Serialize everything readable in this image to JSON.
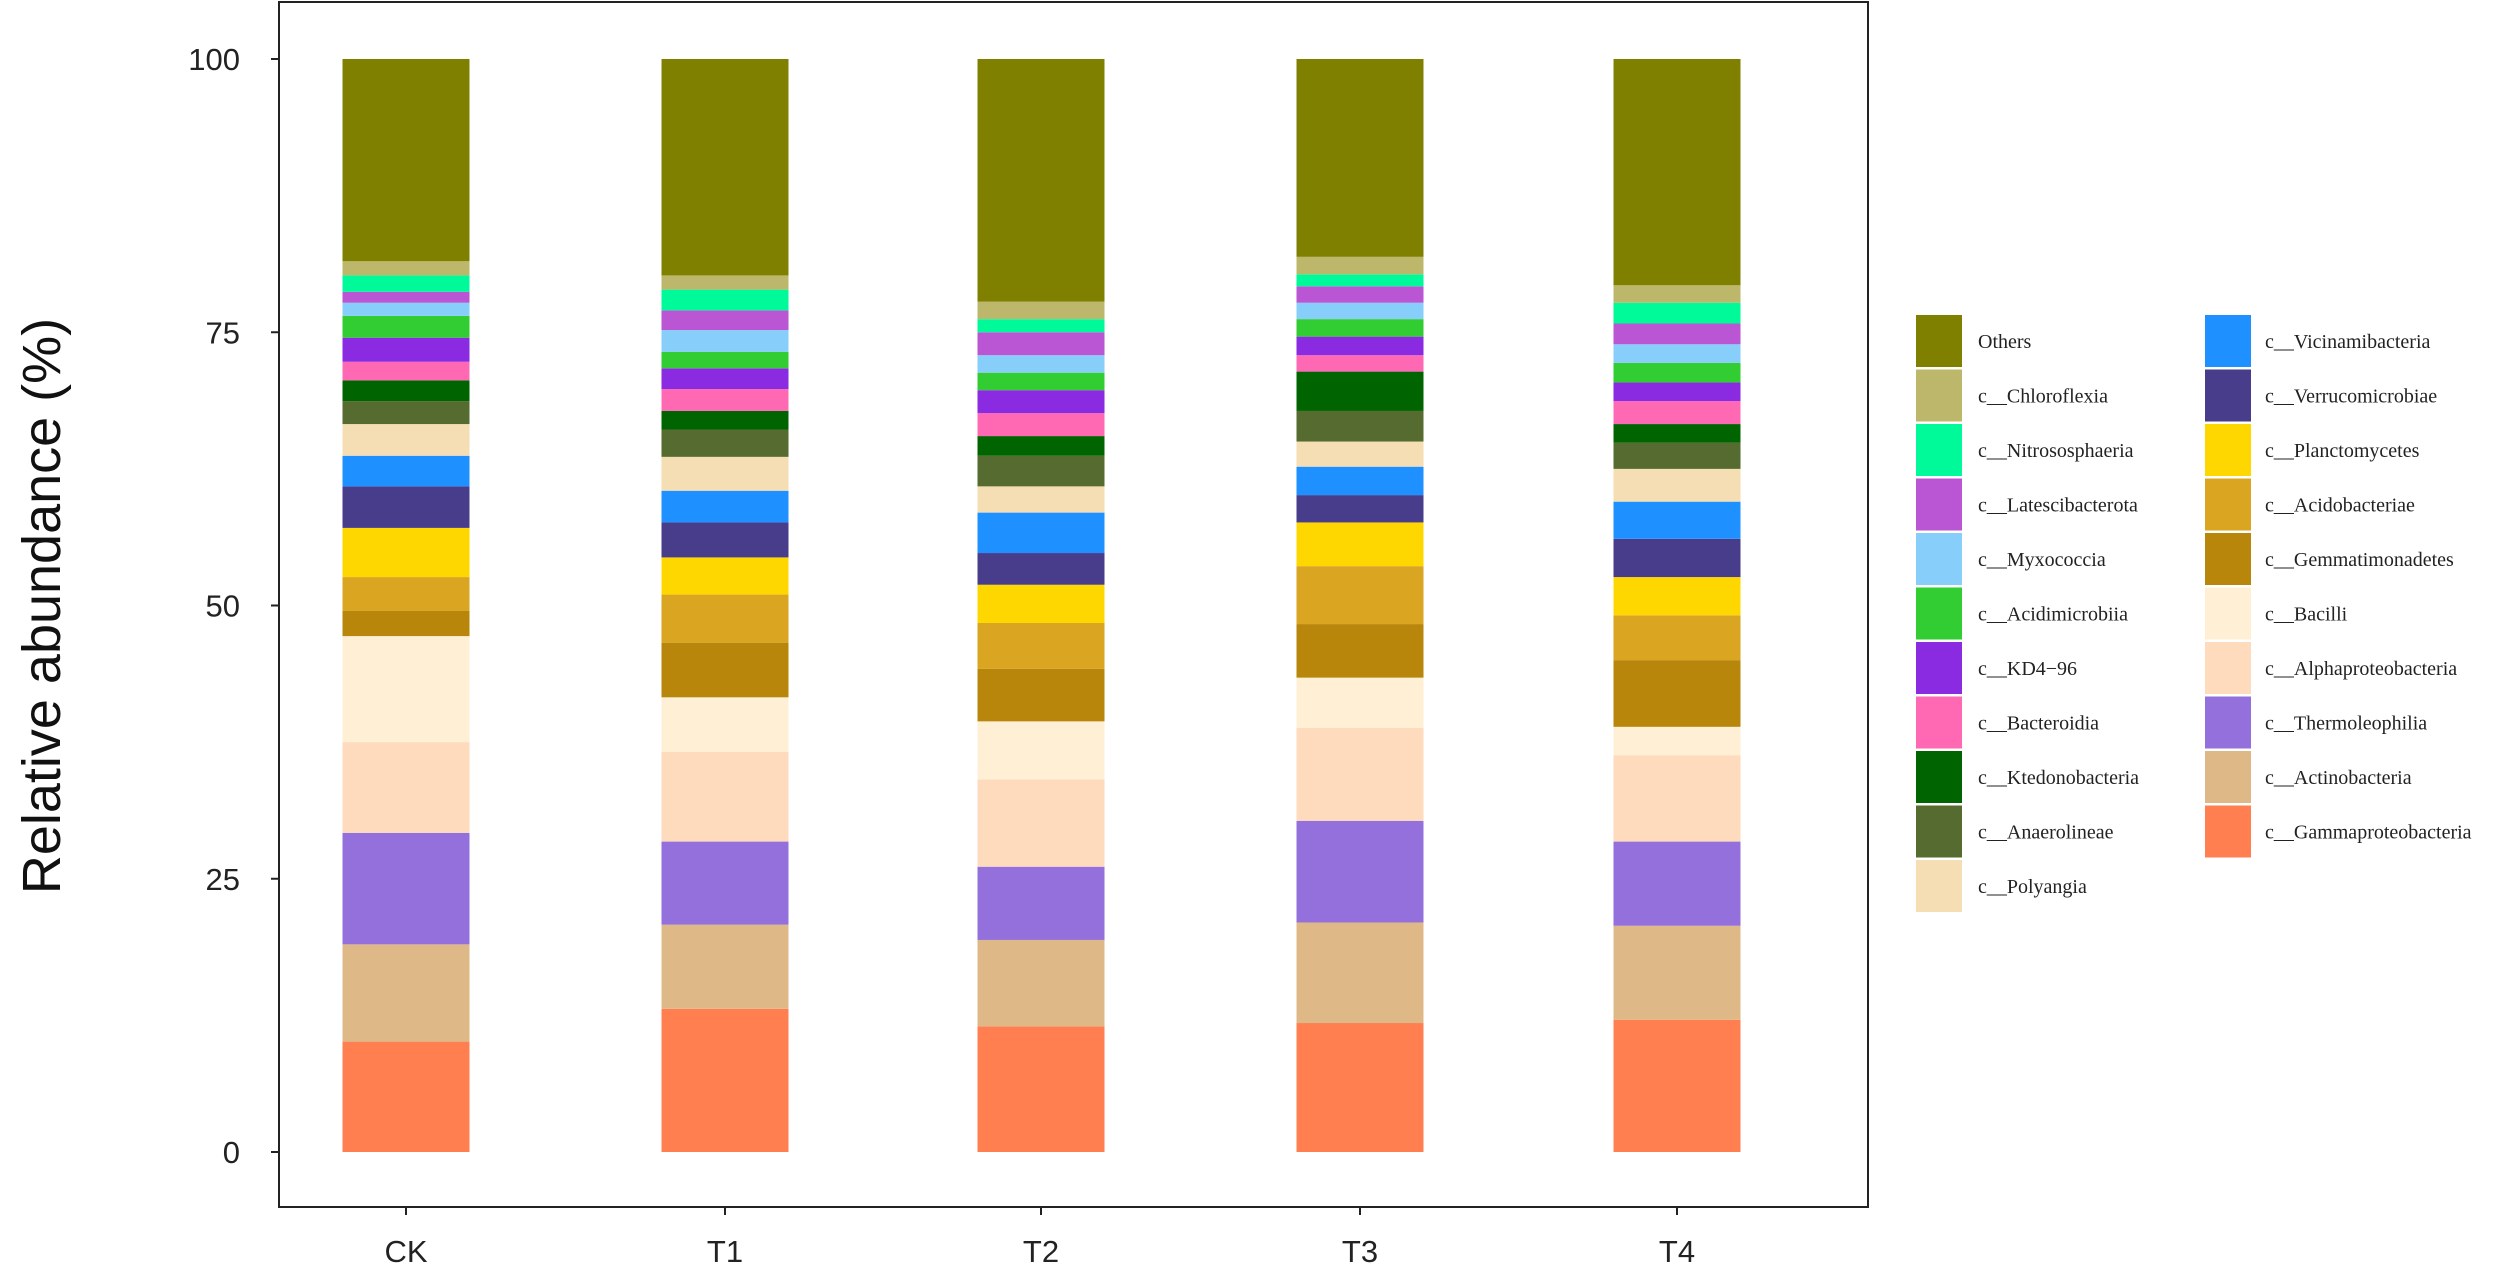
{
  "chart_data": {
    "type": "bar",
    "stacked": true,
    "title": "",
    "xlabel": "",
    "ylabel": "Relative abundance (%)",
    "ylim": [
      0,
      100
    ],
    "yticks": [
      "0",
      "25",
      "50",
      "75",
      "100"
    ],
    "grid": false,
    "legend_position": "right",
    "categories": [
      "CK",
      "T1",
      "T2",
      "T3",
      "T4"
    ],
    "series": [
      {
        "name": "c__Gammaproteobacteria",
        "color": "#FF7F50",
        "values": [
          10.1,
          13.1,
          11.5,
          11.8,
          12.1
        ]
      },
      {
        "name": "c__Actinobacteria",
        "color": "#DEB887",
        "values": [
          8.9,
          7.7,
          7.9,
          9.2,
          8.6
        ]
      },
      {
        "name": "c__Thermoleophilia",
        "color": "#9370DB",
        "values": [
          10.2,
          7.6,
          6.7,
          9.3,
          7.7
        ]
      },
      {
        "name": "c__Alphaproteobacteria",
        "color": "#FDDBBC",
        "values": [
          8.3,
          8.2,
          8.0,
          8.5,
          7.9
        ]
      },
      {
        "name": "c__Bacilli",
        "color": "#FFEFD5",
        "values": [
          9.7,
          5.0,
          5.3,
          4.6,
          2.6
        ]
      },
      {
        "name": "c__Gemmatimonadetes",
        "color": "#B8860B",
        "values": [
          2.3,
          5.0,
          4.8,
          4.9,
          6.1
        ]
      },
      {
        "name": "c__Acidobacteriae",
        "color": "#DAA520",
        "values": [
          3.1,
          4.4,
          4.2,
          5.3,
          4.1
        ]
      },
      {
        "name": "c__Planctomycetes",
        "color": "#FFD700",
        "values": [
          4.5,
          3.4,
          3.5,
          4.0,
          3.5
        ]
      },
      {
        "name": "c__Verrucomicrobiae",
        "color": "#483D8B",
        "values": [
          3.8,
          3.2,
          2.9,
          2.5,
          3.5
        ]
      },
      {
        "name": "c__Vicinamibacteria",
        "color": "#1E90FF",
        "values": [
          2.8,
          2.9,
          3.7,
          2.6,
          3.4
        ]
      },
      {
        "name": "c__Polyangia",
        "color": "#F5DEB3",
        "values": [
          2.9,
          3.1,
          2.4,
          2.3,
          3.0
        ]
      },
      {
        "name": "c__Anaerolineae",
        "color": "#556B2F",
        "values": [
          2.1,
          2.5,
          2.8,
          2.8,
          2.4
        ]
      },
      {
        "name": "c__Ktedonobacteria",
        "color": "#006400",
        "values": [
          1.9,
          1.7,
          1.8,
          3.6,
          1.7
        ]
      },
      {
        "name": "c__Bacteroidia",
        "color": "#FF69B4",
        "values": [
          1.7,
          2.0,
          2.1,
          1.5,
          2.1
        ]
      },
      {
        "name": "c__KD4−96",
        "color": "#8A2BE2",
        "values": [
          2.2,
          1.9,
          2.1,
          1.7,
          1.7
        ]
      },
      {
        "name": "c__Acidimicrobiia",
        "color": "#32CD32",
        "values": [
          2.0,
          1.5,
          1.6,
          1.6,
          1.8
        ]
      },
      {
        "name": "c__Myxococcia",
        "color": "#87CEFA",
        "values": [
          1.2,
          2.0,
          1.6,
          1.5,
          1.7
        ]
      },
      {
        "name": "c__Latescibacterota",
        "color": "#BA55D3",
        "values": [
          1.0,
          1.8,
          2.1,
          1.5,
          1.9
        ]
      },
      {
        "name": "c__Nitrososphaeria",
        "color": "#00FA9A",
        "values": [
          1.5,
          1.9,
          1.2,
          1.1,
          1.9
        ]
      },
      {
        "name": "c__Chloroflexia",
        "color": "#BDB76B",
        "values": [
          1.3,
          1.3,
          1.6,
          1.6,
          1.6
        ]
      },
      {
        "name": "Others",
        "color": "#808000",
        "values": [
          18.5,
          19.8,
          22.2,
          18.1,
          20.7
        ]
      }
    ],
    "legend_order": [
      "Others",
      "c__Chloroflexia",
      "c__Nitrososphaeria",
      "c__Latescibacterota",
      "c__Myxococcia",
      "c__Acidimicrobiia",
      "c__KD4−96",
      "c__Bacteroidia",
      "c__Ktedonobacteria",
      "c__Anaerolineae",
      "c__Polyangia",
      "c__Vicinamibacteria",
      "c__Verrucomicrobiae",
      "c__Planctomycetes",
      "c__Acidobacteriae",
      "c__Gemmatimonadetes",
      "c__Bacilli",
      "c__Alphaproteobacteria",
      "c__Thermoleophilia",
      "c__Actinobacteria",
      "c__Gammaproteobacteria"
    ]
  }
}
